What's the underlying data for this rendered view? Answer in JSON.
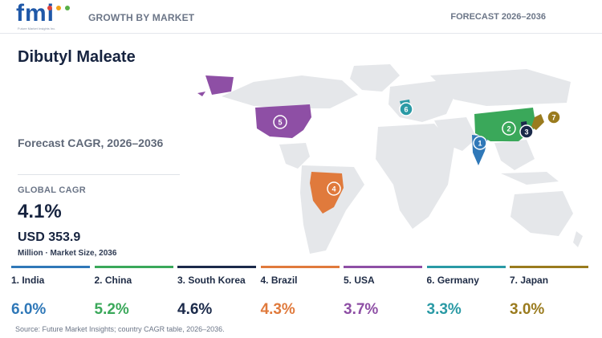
{
  "header": {
    "logo_text": "fmi",
    "logo_tagline": "Future Market Insights Inc.",
    "left_label": "GROWTH BY MARKET",
    "right_label": "FORECAST 2026–2036"
  },
  "title": "Dibutyl Maleate",
  "subtitle": "Forecast CAGR, 2026–2036",
  "global": {
    "label": "GLOBAL CAGR",
    "value": "4.1%",
    "market_size": "USD 353.9",
    "market_unit": "Million · Market Size, 2036"
  },
  "colors": {
    "India": "#2f78b8",
    "China": "#3aa85a",
    "South Korea": "#1b2a4a",
    "Brazil": "#e07a3c",
    "USA": "#8e4fa5",
    "Germany": "#2a9aa5",
    "Japan": "#9a7b1e",
    "land": "#e5e7ea"
  },
  "chart_data": {
    "type": "table",
    "title": "Dibutyl Maleate",
    "subtitle": "Forecast CAGR, 2026–2036",
    "unit": "%",
    "countries": [
      {
        "rank": 1,
        "label": "1. India",
        "name": "India",
        "cagr": 6.0,
        "display": "6.0%"
      },
      {
        "rank": 2,
        "label": "2. China",
        "name": "China",
        "cagr": 5.2,
        "display": "5.2%"
      },
      {
        "rank": 3,
        "label": "3. South Korea",
        "name": "South Korea",
        "cagr": 4.6,
        "display": "4.6%"
      },
      {
        "rank": 4,
        "label": "4. Brazil",
        "name": "Brazil",
        "cagr": 4.3,
        "display": "4.3%"
      },
      {
        "rank": 5,
        "label": "5. USA",
        "name": "USA",
        "cagr": 3.7,
        "display": "3.7%"
      },
      {
        "rank": 6,
        "label": "6. Germany",
        "name": "Germany",
        "cagr": 3.3,
        "display": "3.3%"
      },
      {
        "rank": 7,
        "label": "7. Japan",
        "name": "Japan",
        "cagr": 3.0,
        "display": "3.0%"
      }
    ],
    "global_cagr": 4.1,
    "market_size_2036_usd_million": 353.9
  },
  "source": "Source: Future Market Insights; country CAGR table, 2026–2036."
}
